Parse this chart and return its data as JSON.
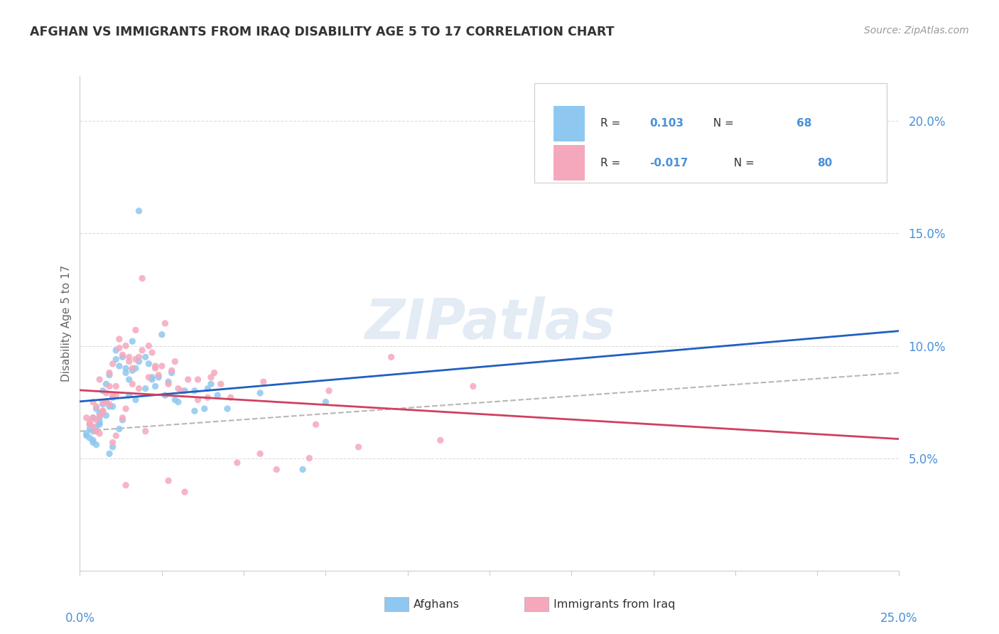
{
  "title": "AFGHAN VS IMMIGRANTS FROM IRAQ DISABILITY AGE 5 TO 17 CORRELATION CHART",
  "source": "Source: ZipAtlas.com",
  "ylabel": "Disability Age 5 to 17",
  "xlim": [
    0.0,
    25.0
  ],
  "ylim": [
    0.0,
    22.0
  ],
  "yticks_pct": [
    5.0,
    10.0,
    15.0,
    20.0
  ],
  "ytick_labels": [
    "5.0%",
    "10.0%",
    "15.0%",
    "20.0%"
  ],
  "color_afghan": "#8EC8F0",
  "color_iraq": "#F5A8BC",
  "color_trend_afghan": "#2060C0",
  "color_trend_iraq": "#D04060",
  "color_dashed": "#AAAAAA",
  "color_grid": "#DDDDDD",
  "background_color": "#FFFFFF",
  "watermark_text": "ZIPatlas",
  "afghans_x": [
    0.3,
    0.5,
    0.4,
    0.6,
    0.8,
    1.0,
    0.2,
    0.7,
    1.2,
    1.5,
    0.9,
    1.8,
    2.0,
    2.5,
    1.3,
    0.4,
    0.6,
    1.1,
    1.6,
    2.2,
    0.3,
    0.8,
    1.4,
    2.8,
    3.5,
    0.5,
    1.7,
    2.3,
    0.2,
    1.0,
    3.0,
    2.1,
    0.9,
    1.3,
    0.7,
    4.2,
    0.4,
    1.6,
    2.7,
    3.8,
    0.6,
    1.2,
    2.4,
    5.5,
    0.3,
    1.8,
    3.2,
    0.5,
    1.0,
    2.0,
    6.8,
    0.8,
    1.5,
    2.9,
    4.0,
    0.7,
    1.4,
    3.5,
    0.6,
    7.5,
    4.5,
    0.4,
    1.1,
    2.6,
    3.9,
    0.9,
    1.7,
    2.2
  ],
  "afghans_y": [
    6.5,
    7.2,
    5.8,
    6.8,
    7.5,
    5.5,
    6.0,
    8.0,
    6.3,
    7.8,
    5.2,
    16.0,
    9.5,
    10.5,
    6.7,
    6.2,
    7.0,
    9.8,
    10.2,
    8.5,
    5.9,
    8.3,
    9.0,
    8.8,
    8.0,
    6.4,
    7.6,
    8.2,
    6.1,
    7.3,
    7.5,
    9.2,
    8.7,
    9.5,
    7.4,
    7.8,
    5.7,
    8.9,
    8.4,
    7.2,
    6.6,
    9.1,
    8.6,
    7.9,
    6.3,
    9.3,
    8.0,
    5.6,
    7.7,
    8.1,
    4.5,
    6.9,
    8.5,
    7.6,
    8.3,
    7.0,
    8.8,
    7.1,
    6.5,
    7.5,
    7.2,
    6.8,
    9.4,
    7.8,
    8.1,
    7.3,
    9.0,
    8.6
  ],
  "iraq_x": [
    0.2,
    0.4,
    0.5,
    0.7,
    0.9,
    1.1,
    0.3,
    0.6,
    1.3,
    1.6,
    1.0,
    1.9,
    2.1,
    2.6,
    1.4,
    0.5,
    0.7,
    1.2,
    1.7,
    2.3,
    0.4,
    0.9,
    1.5,
    2.9,
    3.6,
    0.6,
    1.8,
    2.4,
    0.3,
    1.1,
    3.1,
    2.2,
    1.0,
    1.4,
    0.8,
    4.3,
    0.5,
    1.7,
    2.8,
    3.9,
    0.7,
    1.3,
    2.5,
    5.6,
    0.4,
    1.9,
    3.3,
    0.6,
    1.1,
    2.1,
    7.0,
    0.9,
    1.6,
    3.0,
    4.1,
    0.8,
    1.5,
    3.6,
    0.7,
    7.6,
    4.6,
    0.5,
    1.2,
    2.7,
    4.0,
    1.0,
    1.8,
    2.3,
    9.5,
    12.0,
    5.5,
    6.0,
    3.2,
    8.5,
    4.8,
    2.0,
    11.0,
    7.2,
    2.7,
    1.4
  ],
  "iraq_y": [
    6.8,
    7.5,
    6.2,
    7.1,
    8.2,
    6.0,
    6.5,
    8.5,
    6.8,
    8.3,
    5.7,
    13.0,
    10.0,
    11.0,
    7.2,
    6.7,
    7.5,
    10.3,
    10.7,
    9.0,
    6.4,
    8.8,
    9.5,
    9.3,
    8.5,
    6.9,
    8.1,
    8.7,
    6.6,
    7.8,
    8.0,
    9.7,
    9.2,
    10.0,
    7.9,
    8.3,
    6.2,
    9.4,
    8.9,
    7.7,
    7.1,
    9.6,
    9.1,
    8.4,
    6.8,
    9.8,
    8.5,
    6.1,
    8.2,
    8.6,
    5.0,
    7.4,
    9.0,
    8.1,
    8.8,
    7.5,
    9.3,
    7.6,
    7.0,
    8.0,
    7.7,
    7.3,
    9.9,
    8.3,
    8.6,
    7.8,
    9.5,
    9.1,
    9.5,
    8.2,
    5.2,
    4.5,
    3.5,
    5.5,
    4.8,
    6.2,
    5.8,
    6.5,
    4.0,
    3.8
  ]
}
